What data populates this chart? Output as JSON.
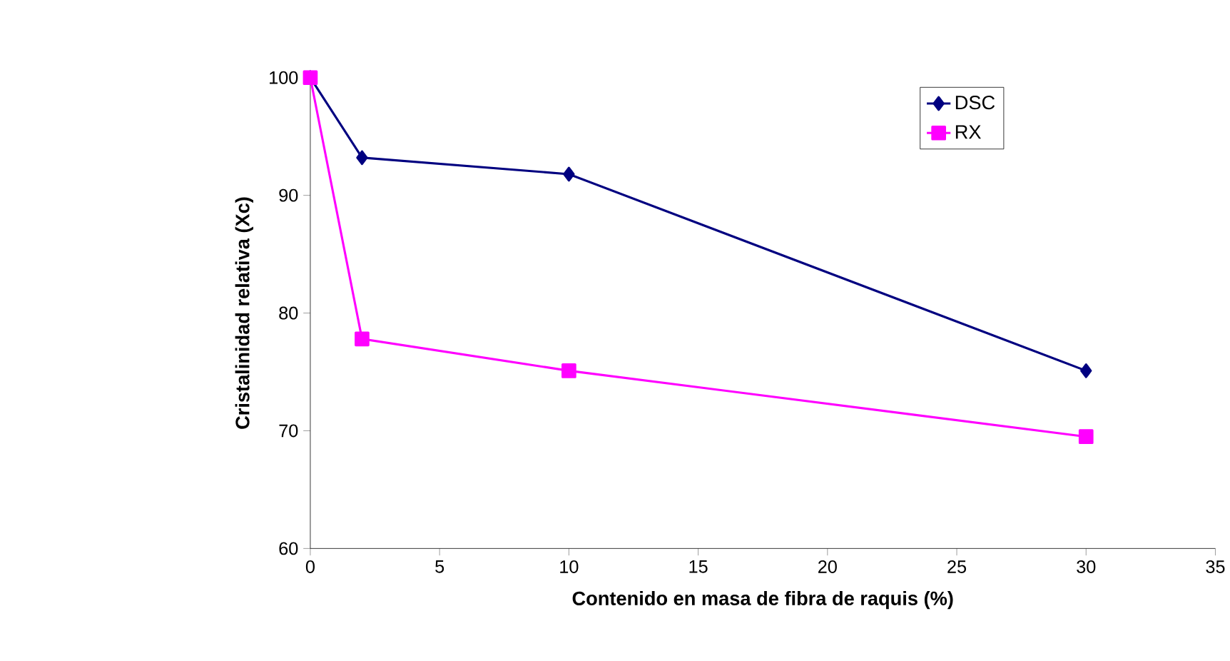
{
  "chart_data": {
    "type": "line",
    "xlabel": "Contenido en masa de fibra de raquis (%)",
    "ylabel": "Cristalinidad relativa (Xc)",
    "x": [
      0,
      2,
      10,
      30
    ],
    "series": [
      {
        "name": "DSC",
        "color": "#000080",
        "marker": "diamond",
        "values": [
          100,
          93.2,
          91.8,
          75.1
        ]
      },
      {
        "name": "RX",
        "color": "#ff00ff",
        "marker": "square",
        "values": [
          100,
          77.8,
          75.1,
          69.5
        ]
      }
    ],
    "xlim": [
      0,
      35
    ],
    "xticks": [
      0,
      5,
      10,
      15,
      20,
      25,
      30,
      35
    ],
    "ylim": [
      60,
      100
    ],
    "yticks": [
      60,
      70,
      80,
      90,
      100
    ],
    "grid": false,
    "legend": "top right",
    "line_style": "solid"
  }
}
